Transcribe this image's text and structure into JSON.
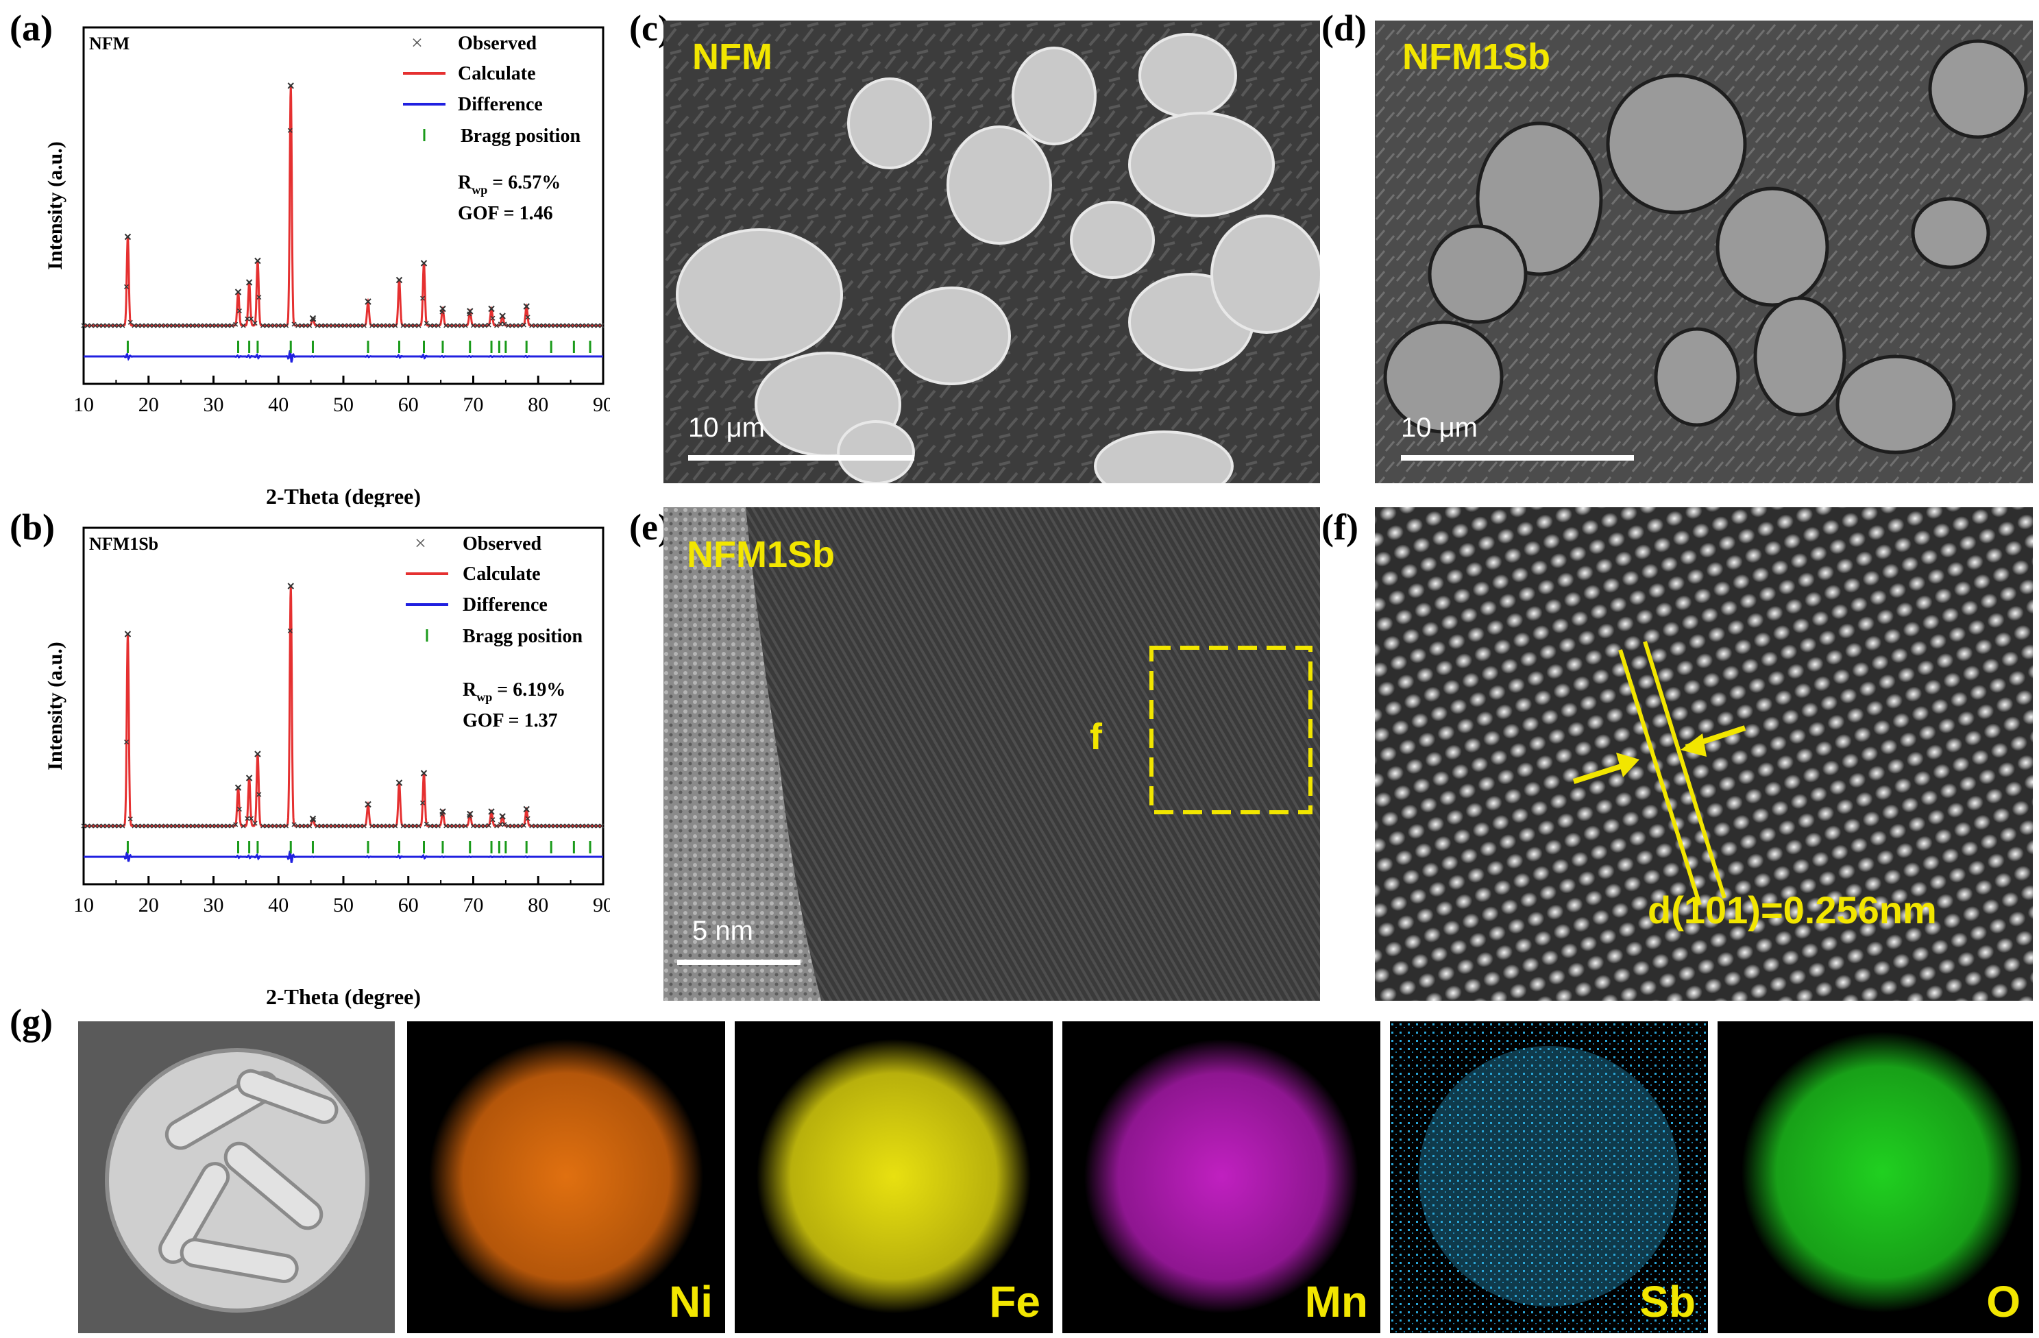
{
  "panels": {
    "a": {
      "letter": "(a)",
      "sample": "NFM",
      "legend": [
        "Observed",
        "Calculate",
        "Difference",
        "Bragg position"
      ],
      "rwp_prefix": "R",
      "rwp_sub": "wp",
      "rwp_value": " = 6.57%",
      "gof": "GOF = 1.46",
      "ylabel": "Intensity (a.u.)",
      "xlabel": "2-Theta (degree)",
      "xticks": [
        "10",
        "20",
        "30",
        "40",
        "50",
        "60",
        "70",
        "80",
        "90"
      ]
    },
    "b": {
      "letter": "(b)",
      "sample": "NFM1Sb",
      "legend": [
        "Observed",
        "Calculate",
        "Difference",
        "Bragg position"
      ],
      "rwp_prefix": "R",
      "rwp_sub": "wp",
      "rwp_value": " = 6.19%",
      "gof": "GOF = 1.37",
      "ylabel": "Intensity (a.u.)",
      "xlabel": "2-Theta (degree)",
      "xticks": [
        "10",
        "20",
        "30",
        "40",
        "50",
        "60",
        "70",
        "80",
        "90"
      ]
    },
    "c": {
      "letter": "(c)",
      "label": "NFM",
      "scale": "10 μm"
    },
    "d": {
      "letter": "(d)",
      "label": "NFM1Sb",
      "scale": "10 μm"
    },
    "e": {
      "letter": "(e)",
      "label": "NFM1Sb",
      "box_label": "f",
      "scale": "5 nm"
    },
    "f": {
      "letter": "(f)",
      "annotation": "d(101)=0.256nm"
    },
    "g": {
      "letter": "(g)",
      "maps": [
        {
          "element": "Ni",
          "color": "#e07010"
        },
        {
          "element": "Fe",
          "color": "#e8e010"
        },
        {
          "element": "Mn",
          "color": "#c020c0"
        },
        {
          "element": "Sb",
          "color": "#2aa6d8"
        },
        {
          "element": "O",
          "color": "#20d020"
        }
      ]
    }
  },
  "chart_data": [
    {
      "type": "line",
      "panel": "a",
      "title": "NFM",
      "xlabel": "2-Theta (degree)",
      "ylabel": "Intensity (a.u.)",
      "xlim": [
        10,
        90
      ],
      "series": [
        {
          "name": "Observed"
        },
        {
          "name": "Calculate"
        },
        {
          "name": "Difference"
        },
        {
          "name": "Bragg position"
        }
      ],
      "peaks": [
        {
          "x": 16.8,
          "y": 0.37
        },
        {
          "x": 33.8,
          "y": 0.14
        },
        {
          "x": 35.5,
          "y": 0.18
        },
        {
          "x": 36.8,
          "y": 0.27
        },
        {
          "x": 41.9,
          "y": 1.0
        },
        {
          "x": 45.3,
          "y": 0.03
        },
        {
          "x": 53.8,
          "y": 0.1
        },
        {
          "x": 58.6,
          "y": 0.19
        },
        {
          "x": 62.4,
          "y": 0.26
        },
        {
          "x": 65.3,
          "y": 0.07
        },
        {
          "x": 69.5,
          "y": 0.06
        },
        {
          "x": 72.8,
          "y": 0.07
        },
        {
          "x": 74.5,
          "y": 0.04
        },
        {
          "x": 78.2,
          "y": 0.08
        }
      ],
      "bragg_positions": [
        16.8,
        33.8,
        35.5,
        36.8,
        41.9,
        45.3,
        53.8,
        58.6,
        62.4,
        65.3,
        69.5,
        72.8,
        74.0,
        75.0,
        78.2,
        82.0,
        85.5,
        88.0
      ]
    },
    {
      "type": "line",
      "panel": "b",
      "title": "NFM1Sb",
      "xlabel": "2-Theta (degree)",
      "ylabel": "Intensity (a.u.)",
      "xlim": [
        10,
        90
      ],
      "series": [
        {
          "name": "Observed"
        },
        {
          "name": "Calculate"
        },
        {
          "name": "Difference"
        },
        {
          "name": "Bragg position"
        }
      ],
      "peaks": [
        {
          "x": 16.8,
          "y": 0.8
        },
        {
          "x": 33.8,
          "y": 0.16
        },
        {
          "x": 35.5,
          "y": 0.2
        },
        {
          "x": 36.8,
          "y": 0.3
        },
        {
          "x": 41.9,
          "y": 1.0
        },
        {
          "x": 45.3,
          "y": 0.03
        },
        {
          "x": 53.8,
          "y": 0.09
        },
        {
          "x": 58.6,
          "y": 0.18
        },
        {
          "x": 62.4,
          "y": 0.22
        },
        {
          "x": 65.3,
          "y": 0.06
        },
        {
          "x": 69.5,
          "y": 0.05
        },
        {
          "x": 72.8,
          "y": 0.06
        },
        {
          "x": 74.5,
          "y": 0.04
        },
        {
          "x": 78.2,
          "y": 0.07
        }
      ],
      "bragg_positions": [
        16.8,
        33.8,
        35.5,
        36.8,
        41.9,
        45.3,
        53.8,
        58.6,
        62.4,
        65.3,
        69.5,
        72.8,
        74.0,
        75.0,
        78.2,
        82.0,
        85.5,
        88.0
      ]
    }
  ]
}
